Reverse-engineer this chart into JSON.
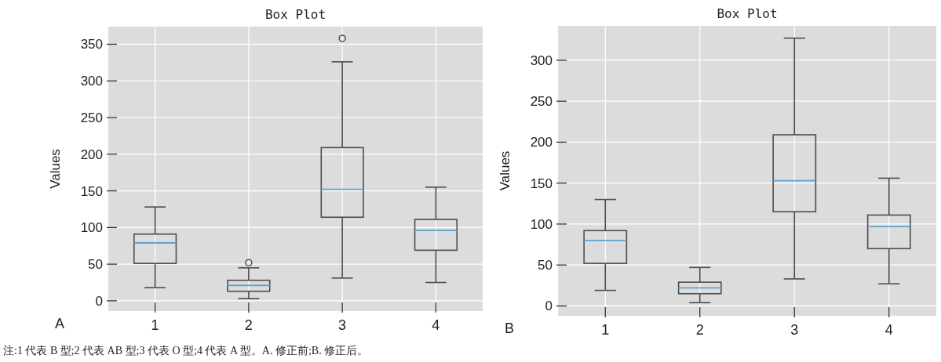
{
  "chart_data": [
    {
      "type": "box",
      "title": "Box Plot",
      "ylabel": "Values",
      "categories": [
        "1",
        "2",
        "3",
        "4"
      ],
      "ylim": [
        -14,
        374
      ],
      "yticks": [
        0,
        50,
        100,
        150,
        200,
        250,
        300,
        350
      ],
      "grid": true,
      "series": [
        {
          "color": "#4d4d4d",
          "boxes": [
            {
              "low": 18,
              "q1": 51,
              "median": 79,
              "q3": 91,
              "high": 128
            },
            {
              "low": 3,
              "q1": 13,
              "median": 21,
              "q3": 28,
              "high": 45,
              "outliers": [
                52
              ]
            },
            {
              "low": 31,
              "q1": 114,
              "median": 152,
              "q3": 209,
              "high": 326,
              "outliers": [
                358
              ]
            },
            {
              "low": 25,
              "q1": 69,
              "median": 96,
              "q3": 111,
              "high": 155
            }
          ]
        }
      ],
      "annotations": [
        "A",
        "注:1 代表 B 型;2 代表 AB 型;3 代表 O 型;4 代表 A 型。A. 修正前;B. 修正后。"
      ]
    },
    {
      "type": "box",
      "title": "Box Plot",
      "ylabel": "Values",
      "categories": [
        "1",
        "2",
        "3",
        "4"
      ],
      "ylim": [
        -12,
        342
      ],
      "yticks": [
        0,
        50,
        100,
        150,
        200,
        250,
        300
      ],
      "grid": true,
      "series": [
        {
          "color": "#4d4d4d",
          "boxes": [
            {
              "low": 19,
              "q1": 52,
              "median": 80,
              "q3": 92,
              "high": 130
            },
            {
              "low": 4,
              "q1": 15,
              "median": 22,
              "q3": 29,
              "high": 47
            },
            {
              "low": 33,
              "q1": 115,
              "median": 153,
              "q3": 209,
              "high": 327
            },
            {
              "low": 27,
              "q1": 70,
              "median": 97,
              "q3": 111,
              "high": 156
            }
          ]
        }
      ],
      "annotations": [
        "B"
      ]
    }
  ]
}
